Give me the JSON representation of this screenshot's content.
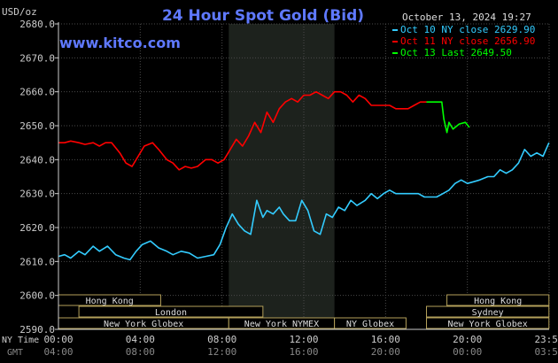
{
  "chart_data": {
    "type": "line",
    "title": "24 Hour Spot Gold (Bid)",
    "ylabel": "USD/oz",
    "watermark": "www.kitco.com",
    "timestamp": "October 13, 2024 19:27",
    "ylim": [
      2590,
      2680
    ],
    "yticks": [
      "2680.0",
      "2670.0",
      "2660.0",
      "2650.0",
      "2640.0",
      "2630.0",
      "2620.0",
      "2610.0",
      "2600.0",
      "2590.0"
    ],
    "x_range_hours": [
      0,
      24
    ],
    "xticks_ny": [
      "00:00",
      "04:00",
      "08:00",
      "12:00",
      "16:00",
      "20:00",
      "23:59"
    ],
    "xticks_gmt": [
      "04:00",
      "08:00",
      "12:00",
      "16:00",
      "20:00",
      "00:00",
      "03:59"
    ],
    "xaxis_row_labels": {
      "ny": "NY Time",
      "gmt": "GMT"
    },
    "nymex_shade_hours": [
      8.33,
      13.5
    ],
    "grid": true,
    "legend_position": "top-right",
    "colors": {
      "oct10": "#33ccff",
      "oct11": "#ff0000",
      "oct13": "#00ff00",
      "axis": "#cccccc",
      "title": "#5f79ff",
      "shade": "#1d221d"
    },
    "series": [
      {
        "name": "Oct 10 NY close 2629.90",
        "color": "#33ccff",
        "x": [
          0,
          0.3,
          0.6,
          1.0,
          1.3,
          1.7,
          2.0,
          2.4,
          2.8,
          3.2,
          3.5,
          3.8,
          4.1,
          4.5,
          4.9,
          5.3,
          5.6,
          6.0,
          6.4,
          6.8,
          7.2,
          7.6,
          7.9,
          8.2,
          8.5,
          8.8,
          9.1,
          9.4,
          9.7,
          10.0,
          10.2,
          10.5,
          10.8,
          11.0,
          11.3,
          11.6,
          11.9,
          12.2,
          12.5,
          12.8,
          13.1,
          13.4,
          13.7,
          14.0,
          14.3,
          14.6,
          15.0,
          15.3,
          15.6,
          15.9,
          16.2,
          16.5,
          16.8,
          17.2,
          17.6,
          17.9,
          18.2,
          18.5,
          18.8,
          19.1,
          19.4,
          19.7,
          20.0,
          20.3,
          20.6,
          21.0,
          21.3,
          21.6,
          21.9,
          22.2,
          22.5,
          22.8,
          23.1,
          23.4,
          23.7,
          23.99
        ],
        "values": [
          2611.5,
          2612,
          2611,
          2613,
          2612,
          2614.5,
          2613,
          2614.5,
          2612,
          2611,
          2610.5,
          2613,
          2615,
          2616,
          2614,
          2613,
          2612,
          2613,
          2612.5,
          2611,
          2611.5,
          2612,
          2615,
          2620,
          2624,
          2621,
          2619,
          2618,
          2628,
          2623,
          2625,
          2624,
          2626,
          2624,
          2622,
          2622,
          2628,
          2625,
          2619,
          2618,
          2624,
          2623,
          2626,
          2625,
          2628,
          2626.5,
          2628,
          2630,
          2628.5,
          2630,
          2631,
          2630,
          2630,
          2630,
          2630,
          2629,
          2629,
          2629,
          2630,
          2631,
          2633,
          2634,
          2633,
          2633.5,
          2634,
          2635,
          2635,
          2637,
          2636,
          2637,
          2639,
          2643,
          2641,
          2642,
          2641,
          2645
        ]
      },
      {
        "name": "Oct 11 NY close 2656.90",
        "color": "#ff0000",
        "x": [
          0,
          0.3,
          0.6,
          1.0,
          1.3,
          1.7,
          2.0,
          2.3,
          2.6,
          3.0,
          3.3,
          3.6,
          3.9,
          4.2,
          4.6,
          4.9,
          5.3,
          5.6,
          5.9,
          6.2,
          6.5,
          6.8,
          7.2,
          7.5,
          7.8,
          8.1,
          8.4,
          8.7,
          9.0,
          9.3,
          9.6,
          9.9,
          10.2,
          10.5,
          10.8,
          11.1,
          11.4,
          11.7,
          12.0,
          12.3,
          12.6,
          12.9,
          13.2,
          13.5,
          13.8,
          14.1,
          14.4,
          14.7,
          15.0,
          15.3,
          15.6,
          15.9,
          16.2,
          16.5,
          16.8,
          17.1,
          17.4,
          17.7,
          18.0
        ],
        "values": [
          2645,
          2645,
          2645.5,
          2645,
          2644.5,
          2645,
          2644,
          2645,
          2645,
          2642,
          2639,
          2638,
          2641,
          2644,
          2645,
          2643,
          2640,
          2639,
          2637,
          2638,
          2637.5,
          2638,
          2640,
          2640,
          2639,
          2640,
          2643,
          2646,
          2644,
          2647,
          2651,
          2648,
          2654,
          2651,
          2655,
          2657,
          2658,
          2657,
          2659,
          2659,
          2660,
          2659,
          2658,
          2660,
          2660,
          2659,
          2657,
          2659,
          2658,
          2656,
          2656,
          2656,
          2656,
          2655,
          2655,
          2655,
          2656,
          2657,
          2657
        ]
      },
      {
        "name": "Oct 13 Last 2649.50",
        "color": "#00ff00",
        "x": [
          18.0,
          18.5,
          18.75,
          18.85,
          19.0,
          19.1,
          19.3,
          19.6,
          19.9,
          20.1
        ],
        "values": [
          2657,
          2657,
          2657,
          2652,
          2648,
          2651,
          2649,
          2650.5,
          2651,
          2649.5
        ]
      }
    ],
    "sessions": [
      {
        "name": "Hong Kong",
        "row": 0,
        "start_h": 0.0,
        "end_h": 5.0
      },
      {
        "name": "London",
        "row": 1,
        "start_h": 1.0,
        "end_h": 10.0
      },
      {
        "name": "New York Globex",
        "row": 2,
        "start_h": 0.0,
        "end_h": 8.33
      },
      {
        "name": "New York NYMEX",
        "row": 2,
        "start_h": 8.33,
        "end_h": 13.5
      },
      {
        "name": "NY Globex",
        "row": 2,
        "start_h": 13.5,
        "end_h": 17.0
      },
      {
        "name": "Hong Kong",
        "row": 0,
        "start_h": 19.0,
        "end_h": 23.99
      },
      {
        "name": "Sydney",
        "row": 1,
        "start_h": 18.0,
        "end_h": 23.99
      },
      {
        "name": "New York Globex",
        "row": 2,
        "start_h": 18.0,
        "end_h": 23.99
      }
    ]
  }
}
